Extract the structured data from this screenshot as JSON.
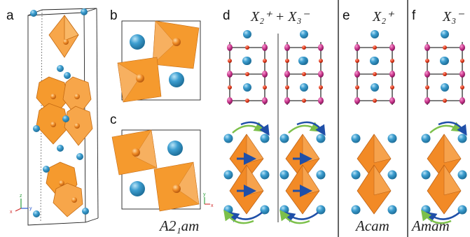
{
  "panels": {
    "a": {
      "letter": "a",
      "axes": {
        "z": "z",
        "y": "y",
        "x": "x"
      }
    },
    "b": {
      "letter": "b"
    },
    "c": {
      "letter": "c",
      "axes": {
        "y": "y",
        "x": "x"
      },
      "symmetry": "A2₁am"
    },
    "d": {
      "letter": "d",
      "label": "X₂⁺ + X₃⁻"
    },
    "e": {
      "letter": "e",
      "label": "X₂⁺",
      "symmetry": "Acam"
    },
    "f": {
      "letter": "f",
      "label": "X₃⁻",
      "symmetry": "Amam"
    }
  },
  "colors": {
    "octahedron": "#f59a2e",
    "octahedron_dark": "#e0701a",
    "sphere": "#3d9ed0",
    "sphere_dark": "#1e6f9a",
    "oxygen": "#e23a1c",
    "cation": "#c8338a",
    "bond": "#555555",
    "arrow_blue": "#1f4fa8",
    "arrow_green": "#7cc04a"
  }
}
